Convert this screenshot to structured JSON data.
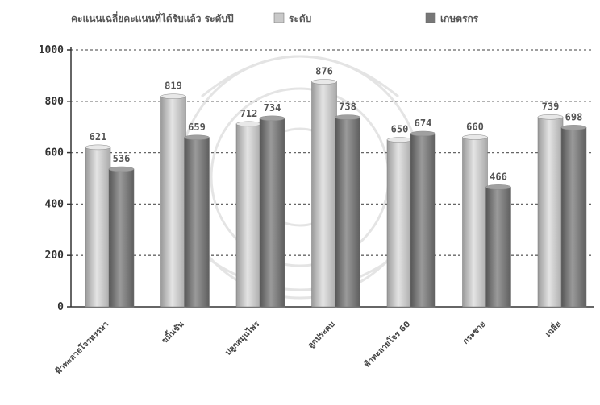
{
  "chart_data": {
    "type": "bar",
    "title": "คะแนนเฉลี่ยคะแนนที่ได้รับแล้ว ระดับปี",
    "categories": [
      "ฟ้าทะลายโจรหรรษา",
      "ขมิ้นชัน",
      "ปลูกสมุนไพร",
      "ลูกประคบ",
      "ฟ้าทะลายโจร 60",
      "กระชาย",
      "เฉลี่ย"
    ],
    "series": [
      {
        "name": "ระดับ",
        "values": [
          621,
          819,
          712,
          876,
          650,
          660,
          739
        ],
        "color": "#c9c9c9"
      },
      {
        "name": "เกษตรกร",
        "values": [
          536,
          659,
          734,
          738,
          674,
          466,
          698
        ],
        "color": "#777777"
      }
    ],
    "ylim": [
      0,
      1000
    ],
    "yticks": [
      0,
      200,
      400,
      600,
      800,
      1000
    ],
    "grid": true,
    "legend": "top"
  }
}
